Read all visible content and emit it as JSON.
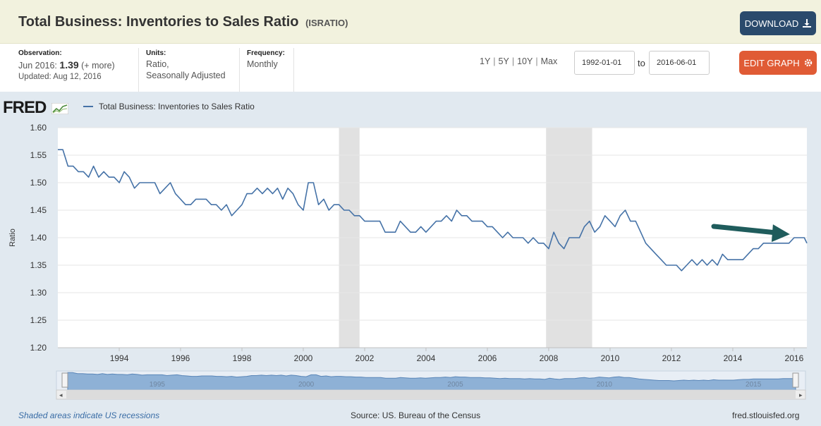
{
  "header": {
    "title": "Total Business: Inventories to Sales Ratio",
    "series_code": "(ISRATIO)",
    "download_label": "DOWNLOAD",
    "download_icon": "download-icon"
  },
  "meta": {
    "observation_label": "Observation:",
    "observation_date": "Jun 2016:",
    "observation_value": "1.39",
    "observation_more": "(+ more)",
    "updated": "Updated: Aug 12, 2016",
    "units_label": "Units:",
    "units_line1": "Ratio,",
    "units_line2": "Seasonally Adjusted",
    "frequency_label": "Frequency:",
    "frequency_value": "Monthly"
  },
  "controls": {
    "range_1y": "1Y",
    "range_5y": "5Y",
    "range_10y": "10Y",
    "range_max": "Max",
    "start_date": "1992-01-01",
    "to_label": "to",
    "end_date": "2016-06-01",
    "edit_label": "EDIT GRAPH",
    "edit_icon": "gear-icon"
  },
  "footer": {
    "recession_note": "Shaded areas indicate US recessions",
    "source": "Source: US. Bureau of the Census",
    "site": "fred.stlouisfed.org"
  },
  "logo_text": "FRED",
  "colors": {
    "series": "#4572a7",
    "recession": "#e1e1e1",
    "arrow": "#1f5c5c",
    "download_button": "#2a4a6c",
    "edit_button": "#e05b35"
  },
  "chart_data": {
    "type": "line",
    "ylabel": "Ratio",
    "ylim": [
      1.2,
      1.6
    ],
    "yticks": [
      "1.20",
      "1.25",
      "1.30",
      "1.35",
      "1.40",
      "1.45",
      "1.50",
      "1.55",
      "1.60"
    ],
    "xlim": [
      "1992-01-01",
      "2016-06-01"
    ],
    "xticks": [
      "1994",
      "1996",
      "1998",
      "2000",
      "2002",
      "2004",
      "2006",
      "2008",
      "2010",
      "2012",
      "2014",
      "2016"
    ],
    "navigator_labels": [
      "1995",
      "2000",
      "2005",
      "2010",
      "2015"
    ],
    "grid": true,
    "legend": "top-left",
    "recessions": [
      [
        "2001-03-01",
        "2001-11-01"
      ],
      [
        "2007-12-01",
        "2009-06-01"
      ]
    ],
    "annotation": "arrow pointing to 2016 values",
    "series": [
      {
        "name": "Total Business: Inventories to Sales Ratio",
        "points": [
          [
            "1992-01",
            1.56
          ],
          [
            "1992-03",
            1.56
          ],
          [
            "1992-05",
            1.53
          ],
          [
            "1992-07",
            1.53
          ],
          [
            "1992-09",
            1.52
          ],
          [
            "1992-11",
            1.52
          ],
          [
            "1993-01",
            1.51
          ],
          [
            "1993-03",
            1.53
          ],
          [
            "1993-05",
            1.51
          ],
          [
            "1993-07",
            1.52
          ],
          [
            "1993-09",
            1.51
          ],
          [
            "1993-11",
            1.51
          ],
          [
            "1994-01",
            1.5
          ],
          [
            "1994-03",
            1.52
          ],
          [
            "1994-05",
            1.51
          ],
          [
            "1994-07",
            1.49
          ],
          [
            "1994-09",
            1.5
          ],
          [
            "1994-11",
            1.5
          ],
          [
            "1995-01",
            1.5
          ],
          [
            "1995-03",
            1.5
          ],
          [
            "1995-05",
            1.48
          ],
          [
            "1995-07",
            1.49
          ],
          [
            "1995-09",
            1.5
          ],
          [
            "1995-11",
            1.48
          ],
          [
            "1996-01",
            1.47
          ],
          [
            "1996-03",
            1.46
          ],
          [
            "1996-05",
            1.46
          ],
          [
            "1996-07",
            1.47
          ],
          [
            "1996-09",
            1.47
          ],
          [
            "1996-11",
            1.47
          ],
          [
            "1997-01",
            1.46
          ],
          [
            "1997-03",
            1.46
          ],
          [
            "1997-05",
            1.45
          ],
          [
            "1997-07",
            1.46
          ],
          [
            "1997-09",
            1.44
          ],
          [
            "1997-11",
            1.45
          ],
          [
            "1998-01",
            1.46
          ],
          [
            "1998-03",
            1.48
          ],
          [
            "1998-05",
            1.48
          ],
          [
            "1998-07",
            1.49
          ],
          [
            "1998-09",
            1.48
          ],
          [
            "1998-11",
            1.49
          ],
          [
            "1999-01",
            1.48
          ],
          [
            "1999-03",
            1.49
          ],
          [
            "1999-05",
            1.47
          ],
          [
            "1999-07",
            1.49
          ],
          [
            "1999-09",
            1.48
          ],
          [
            "1999-11",
            1.46
          ],
          [
            "2000-01",
            1.45
          ],
          [
            "2000-03",
            1.5
          ],
          [
            "2000-05",
            1.5
          ],
          [
            "2000-07",
            1.46
          ],
          [
            "2000-09",
            1.47
          ],
          [
            "2000-11",
            1.45
          ],
          [
            "2001-01",
            1.46
          ],
          [
            "2001-03",
            1.46
          ],
          [
            "2001-05",
            1.45
          ],
          [
            "2001-07",
            1.45
          ],
          [
            "2001-09",
            1.44
          ],
          [
            "2001-11",
            1.44
          ],
          [
            "2002-01",
            1.43
          ],
          [
            "2002-03",
            1.43
          ],
          [
            "2002-05",
            1.43
          ],
          [
            "2002-07",
            1.43
          ],
          [
            "2002-09",
            1.41
          ],
          [
            "2002-11",
            1.41
          ],
          [
            "2003-01",
            1.41
          ],
          [
            "2003-03",
            1.43
          ],
          [
            "2003-05",
            1.42
          ],
          [
            "2003-07",
            1.41
          ],
          [
            "2003-09",
            1.41
          ],
          [
            "2003-11",
            1.42
          ],
          [
            "2004-01",
            1.41
          ],
          [
            "2004-03",
            1.42
          ],
          [
            "2004-05",
            1.43
          ],
          [
            "2004-07",
            1.43
          ],
          [
            "2004-09",
            1.44
          ],
          [
            "2004-11",
            1.43
          ],
          [
            "2005-01",
            1.45
          ],
          [
            "2005-03",
            1.44
          ],
          [
            "2005-05",
            1.44
          ],
          [
            "2005-07",
            1.43
          ],
          [
            "2005-09",
            1.43
          ],
          [
            "2005-11",
            1.43
          ],
          [
            "2006-01",
            1.42
          ],
          [
            "2006-03",
            1.42
          ],
          [
            "2006-05",
            1.41
          ],
          [
            "2006-07",
            1.4
          ],
          [
            "2006-09",
            1.41
          ],
          [
            "2006-11",
            1.4
          ],
          [
            "2007-01",
            1.4
          ],
          [
            "2007-03",
            1.4
          ],
          [
            "2007-05",
            1.39
          ],
          [
            "2007-07",
            1.4
          ],
          [
            "2007-09",
            1.39
          ],
          [
            "2007-11",
            1.39
          ],
          [
            "2008-01",
            1.38
          ],
          [
            "2008-03",
            1.41
          ],
          [
            "2008-05",
            1.39
          ],
          [
            "2008-07",
            1.38
          ],
          [
            "2008-09",
            1.4
          ],
          [
            "2008-11",
            1.4
          ],
          [
            "2009-01",
            1.4
          ],
          [
            "2009-03",
            1.42
          ],
          [
            "2009-05",
            1.43
          ],
          [
            "2009-07",
            1.41
          ],
          [
            "2009-09",
            1.42
          ],
          [
            "2009-11",
            1.44
          ],
          [
            "2010-01",
            1.43
          ],
          [
            "2010-03",
            1.42
          ],
          [
            "2010-05",
            1.44
          ],
          [
            "2010-07",
            1.45
          ],
          [
            "2010-09",
            1.43
          ],
          [
            "2010-11",
            1.43
          ],
          [
            "2011-01",
            1.41
          ],
          [
            "2011-03",
            1.39
          ],
          [
            "2011-05",
            1.38
          ],
          [
            "2011-07",
            1.37
          ],
          [
            "2011-09",
            1.36
          ],
          [
            "2011-11",
            1.35
          ],
          [
            "2012-01",
            1.35
          ],
          [
            "2012-03",
            1.35
          ],
          [
            "2012-05",
            1.34
          ],
          [
            "2012-07",
            1.35
          ],
          [
            "2012-09",
            1.36
          ],
          [
            "2012-11",
            1.35
          ],
          [
            "2013-01",
            1.36
          ],
          [
            "2013-03",
            1.35
          ],
          [
            "2013-05",
            1.36
          ],
          [
            "2013-07",
            1.35
          ],
          [
            "2013-09",
            1.37
          ],
          [
            "2013-11",
            1.36
          ],
          [
            "2014-01",
            1.36
          ],
          [
            "2014-03",
            1.36
          ],
          [
            "2014-05",
            1.36
          ],
          [
            "2014-07",
            1.37
          ],
          [
            "2014-09",
            1.38
          ],
          [
            "2014-11",
            1.38
          ],
          [
            "2015-01",
            1.39
          ],
          [
            "2015-03",
            1.39
          ],
          [
            "2015-05",
            1.39
          ],
          [
            "2015-07",
            1.39
          ],
          [
            "2015-09",
            1.39
          ],
          [
            "2015-11",
            1.39
          ],
          [
            "2016-01",
            1.4
          ],
          [
            "2016-03",
            1.4
          ],
          [
            "2016-05",
            1.4
          ],
          [
            "2016-06",
            1.39
          ]
        ]
      }
    ]
  }
}
